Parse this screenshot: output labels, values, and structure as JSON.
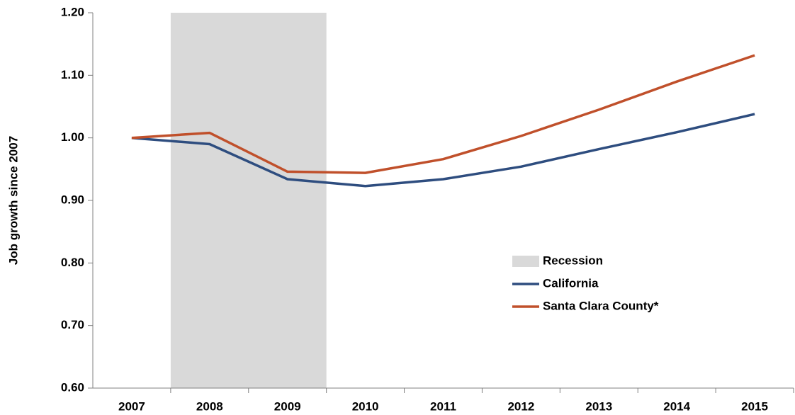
{
  "chart_data": {
    "type": "line",
    "y_axis_label": "Job growth since 2007",
    "categories": [
      "2007",
      "2008",
      "2009",
      "2010",
      "2011",
      "2012",
      "2013",
      "2014",
      "2015"
    ],
    "series": [
      {
        "name": "California",
        "color": "#2e4d7f",
        "values": [
          1.0,
          0.99,
          0.934,
          0.923,
          0.934,
          0.954,
          0.982,
          1.009,
          1.038
        ]
      },
      {
        "name": "Santa Clara County*",
        "color": "#c0502b",
        "values": [
          1.0,
          1.008,
          0.946,
          0.944,
          0.966,
          1.003,
          1.045,
          1.09,
          1.132
        ]
      }
    ],
    "shaded_regions": [
      {
        "label": "Recession",
        "start": "2008",
        "end": "2009",
        "color": "#d9d9d9"
      }
    ],
    "ylim": [
      0.6,
      1.2
    ],
    "yticks": [
      {
        "value": 0.6,
        "label": "0.60"
      },
      {
        "value": 0.7,
        "label": "0.70"
      },
      {
        "value": 0.8,
        "label": "0.80"
      },
      {
        "value": 0.9,
        "label": "0.90"
      },
      {
        "value": 1.0,
        "label": "1.00"
      },
      {
        "value": 1.1,
        "label": "1.10"
      },
      {
        "value": 1.2,
        "label": "1.20"
      }
    ],
    "grid": false
  }
}
